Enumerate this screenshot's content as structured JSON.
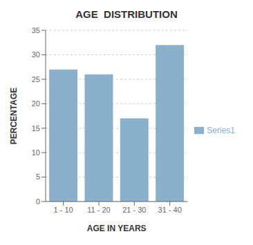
{
  "chart_data": {
    "type": "bar",
    "title": "AGE  DISTRIBUTION",
    "xlabel": "AGE IN YEARS",
    "ylabel": "PERCENTAGE",
    "categories": [
      "1 - 10",
      "11 - 20",
      "21 - 30",
      "31 - 40"
    ],
    "series": [
      {
        "name": "Series1",
        "color": "#8ab0cc",
        "values": [
          27,
          26,
          17,
          32
        ]
      }
    ],
    "ylim": [
      0,
      35
    ],
    "yticks": [
      0,
      5,
      10,
      15,
      20,
      25,
      30,
      35
    ],
    "grid": true,
    "legend": "right"
  }
}
